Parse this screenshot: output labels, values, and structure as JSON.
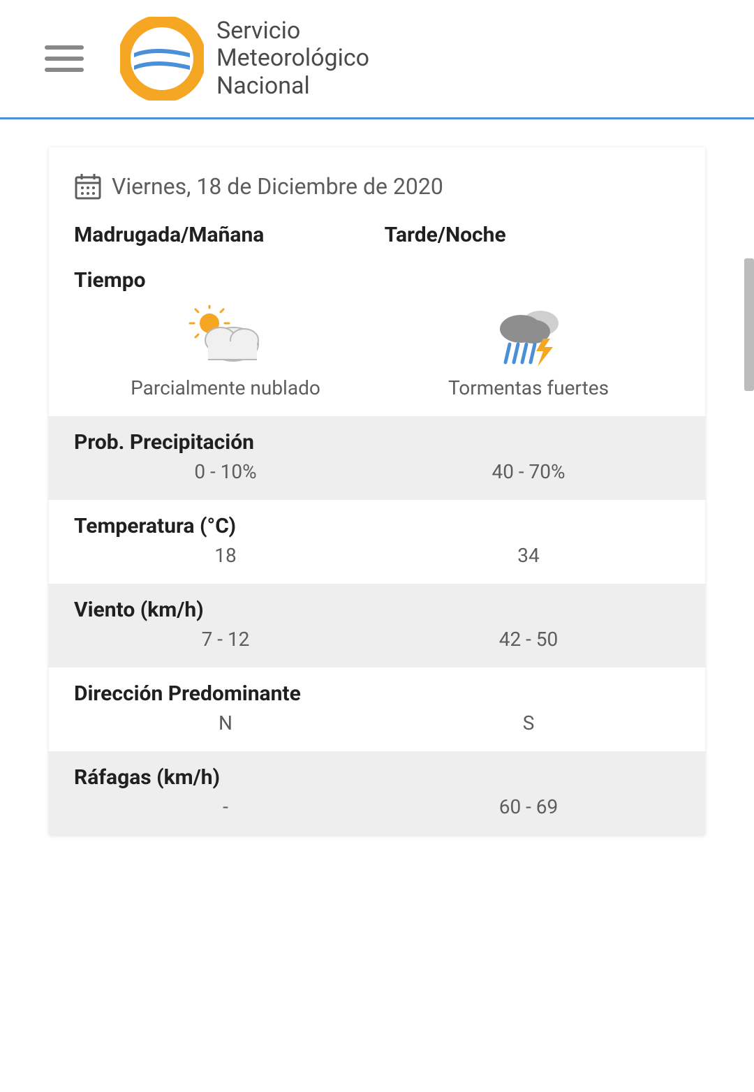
{
  "header": {
    "logo_line1": "Servicio",
    "logo_line2": "Meteorológico",
    "logo_line3": "Nacional",
    "logo_colors": {
      "ring": "#f5a623",
      "wave_top": "#4a90d9",
      "wave_bottom": "#4a90d9",
      "wave_gap": "#ffffff"
    },
    "border_color": "#4a90d9"
  },
  "forecast": {
    "date_label": "Viernes, 18 de Diciembre de 2020",
    "periods": {
      "morning": "Madrugada/Mañana",
      "evening": "Tarde/Noche"
    },
    "weather_section_label": "Tiempo",
    "weather": {
      "morning": {
        "icon": "partly-cloudy",
        "desc": "Parcialmente nublado",
        "colors": {
          "sun": "#f5a623",
          "cloud_fill": "#f0f0f0",
          "cloud_stroke": "#b8b8b8"
        }
      },
      "evening": {
        "icon": "thunderstorm",
        "desc": "Tormentas fuertes",
        "colors": {
          "cloud_back": "#cfcfcf",
          "cloud_front": "#8e8e8e",
          "rain": "#4a90d9",
          "bolt": "#f5a623"
        }
      }
    },
    "rows": [
      {
        "key": "precip",
        "label": "Prob. Precipitación",
        "morning": "0 - 10%",
        "evening": "40 - 70%",
        "shade": true
      },
      {
        "key": "temp",
        "label": "Temperatura (°C)",
        "morning": "18",
        "evening": "34",
        "shade": false
      },
      {
        "key": "wind",
        "label": "Viento (km/h)",
        "morning": "7 - 12",
        "evening": "42 - 50",
        "shade": true
      },
      {
        "key": "dir",
        "label": "Dirección Predominante",
        "morning": "N",
        "evening": "S",
        "shade": false
      },
      {
        "key": "gust",
        "label": "Ráfagas (km/h)",
        "morning": "-",
        "evening": "60 - 69",
        "shade": true
      }
    ]
  },
  "style": {
    "bg": "#ffffff",
    "card_bg": "#ffffff",
    "shade_bg": "#eeeeee",
    "text_primary": "#202020",
    "text_secondary": "#5d5d5d",
    "hamburger": "#888888",
    "scroll": "#bcbcbc"
  }
}
